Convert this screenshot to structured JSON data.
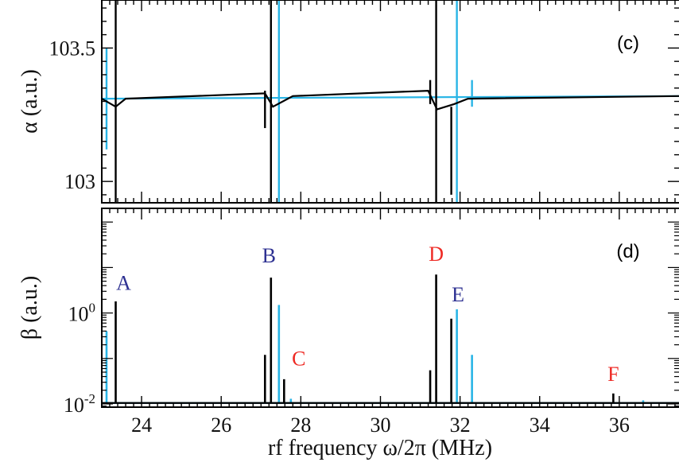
{
  "xlabel": "rf frequency ω/2π (MHz)",
  "colors": {
    "black": "#000000",
    "cyan": "#29b5e6",
    "blue_label": "#2e3192",
    "red_label": "#ee2a24"
  },
  "chart_data": [
    {
      "type": "line",
      "panel_label": "(c)",
      "ylabel": "α (a.u.)",
      "xlim": [
        23,
        37.5
      ],
      "ylim": [
        102.92,
        103.68
      ],
      "x_ticks": [
        24,
        26,
        28,
        30,
        32,
        34,
        36
      ],
      "y_ticks": [
        103,
        103.5
      ],
      "y_tick_labels": [
        "103",
        "103.5"
      ],
      "series": [
        {
          "color": "black",
          "baseline": [
            [
              23,
              103.31
            ],
            [
              23.35,
              103.28
            ],
            [
              23.6,
              103.31
            ],
            [
              27.1,
              103.33
            ],
            [
              27.3,
              103.28
            ],
            [
              27.8,
              103.32
            ],
            [
              31.2,
              103.34
            ],
            [
              31.42,
              103.27
            ],
            [
              31.85,
              103.29
            ],
            [
              32.2,
              103.31
            ],
            [
              37.5,
              103.32
            ]
          ],
          "resonances": [
            {
              "x": 23.35,
              "top": 103.68,
              "bottom": 102.92
            },
            {
              "x": 27.1,
              "top": 103.34,
              "bottom": 103.2
            },
            {
              "x": 27.25,
              "top": 103.68,
              "bottom": 102.92
            },
            {
              "x": 31.25,
              "top": 103.38,
              "bottom": 103.29
            },
            {
              "x": 31.4,
              "top": 103.68,
              "bottom": 102.92
            },
            {
              "x": 31.78,
              "top": 103.28,
              "bottom": 102.95
            }
          ]
        },
        {
          "color": "cyan",
          "baseline": [
            [
              23,
              103.31
            ],
            [
              37.5,
              103.32
            ]
          ],
          "resonances": [
            {
              "x": 23.12,
              "top": 103.5,
              "bottom": 103.12
            },
            {
              "x": 27.45,
              "top": 103.68,
              "bottom": 102.92
            },
            {
              "x": 31.92,
              "top": 103.68,
              "bottom": 102.92
            },
            {
              "x": 32.3,
              "top": 103.38,
              "bottom": 103.28
            }
          ]
        }
      ]
    },
    {
      "type": "line",
      "panel_label": "(d)",
      "ylabel": "β (a.u.)",
      "y_scale": "log",
      "xlim": [
        23,
        37.5
      ],
      "ylim": [
        0.0085,
        200
      ],
      "x_ticks": [
        24,
        26,
        28,
        30,
        32,
        34,
        36
      ],
      "x_tick_labels": [
        "24",
        "26",
        "28",
        "30",
        "32",
        "34",
        "36"
      ],
      "y_ticks": [
        0.01,
        1
      ],
      "y_tick_labels": [
        {
          "base": "10",
          "exp": "-2"
        },
        {
          "base": "10",
          "exp": "0"
        }
      ],
      "series": [
        {
          "color": "black",
          "baseline": 0.0105,
          "peaks": [
            [
              23.35,
              1.8
            ],
            [
              27.1,
              0.12
            ],
            [
              27.25,
              6.0
            ],
            [
              27.58,
              0.035
            ],
            [
              31.25,
              0.055
            ],
            [
              31.4,
              7.0
            ],
            [
              31.78,
              0.75
            ],
            [
              35.85,
              0.017
            ]
          ]
        },
        {
          "color": "cyan",
          "baseline": 0.0105,
          "peaks": [
            [
              23.12,
              0.4
            ],
            [
              27.45,
              1.5
            ],
            [
              27.75,
              0.013
            ],
            [
              31.92,
              1.2
            ],
            [
              32.3,
              0.12
            ],
            [
              36.6,
              0.012
            ]
          ]
        }
      ],
      "annotations": [
        {
          "text": "A",
          "x": 23.55,
          "y": 3.2,
          "color": "blue_label"
        },
        {
          "text": "B",
          "x": 27.2,
          "y": 13,
          "color": "blue_label"
        },
        {
          "text": "C",
          "x": 27.95,
          "y": 0.07,
          "color": "red_label"
        },
        {
          "text": "D",
          "x": 31.4,
          "y": 14,
          "color": "red_label"
        },
        {
          "text": "E",
          "x": 31.95,
          "y": 1.8,
          "color": "blue_label"
        },
        {
          "text": "F",
          "x": 35.85,
          "y": 0.032,
          "color": "red_label"
        }
      ]
    }
  ]
}
